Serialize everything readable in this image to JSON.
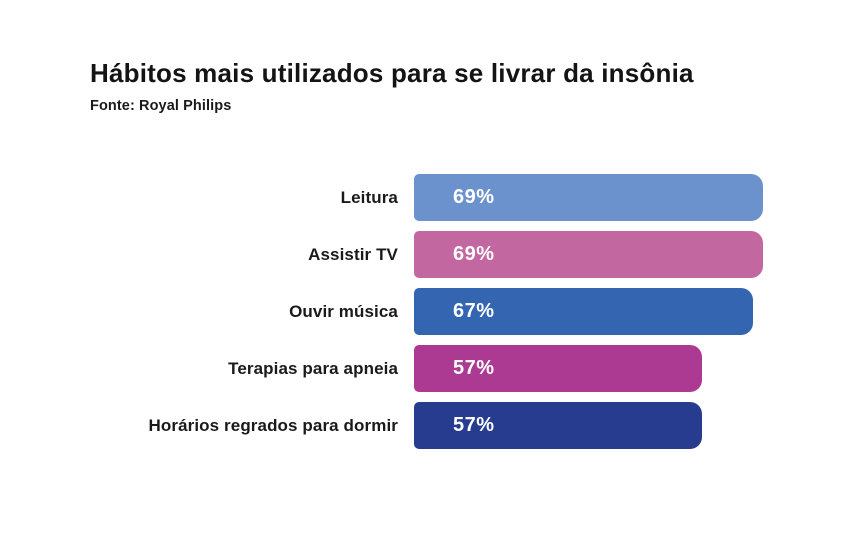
{
  "header": {
    "title": "Hábitos mais utilizados para se livrar da insônia",
    "source": "Fonte: Royal Philips"
  },
  "chart_data": {
    "type": "bar",
    "orientation": "horizontal",
    "title": "Hábitos mais utilizados para se livrar da insônia",
    "source": "Fonte: Royal Philips",
    "unit": "%",
    "xlim": [
      0,
      100
    ],
    "grid": false,
    "value_labels_position": "inside-left",
    "categories": [
      "Leitura",
      "Assistir TV",
      "Ouvir música",
      "Terapias para apneia",
      "Horários regrados para dormir"
    ],
    "values": [
      69,
      69,
      67,
      57,
      57
    ],
    "value_labels": [
      "69%",
      "69%",
      "67%",
      "57%",
      "57%"
    ],
    "bar_colors": [
      "#6B92CC",
      "#C2679F",
      "#3365B0",
      "#AC3A92",
      "#273C8F"
    ],
    "label_text_color": "#1A1A1A",
    "value_text_color": "#FFFFFF",
    "background_color": "#FFFFFF"
  }
}
